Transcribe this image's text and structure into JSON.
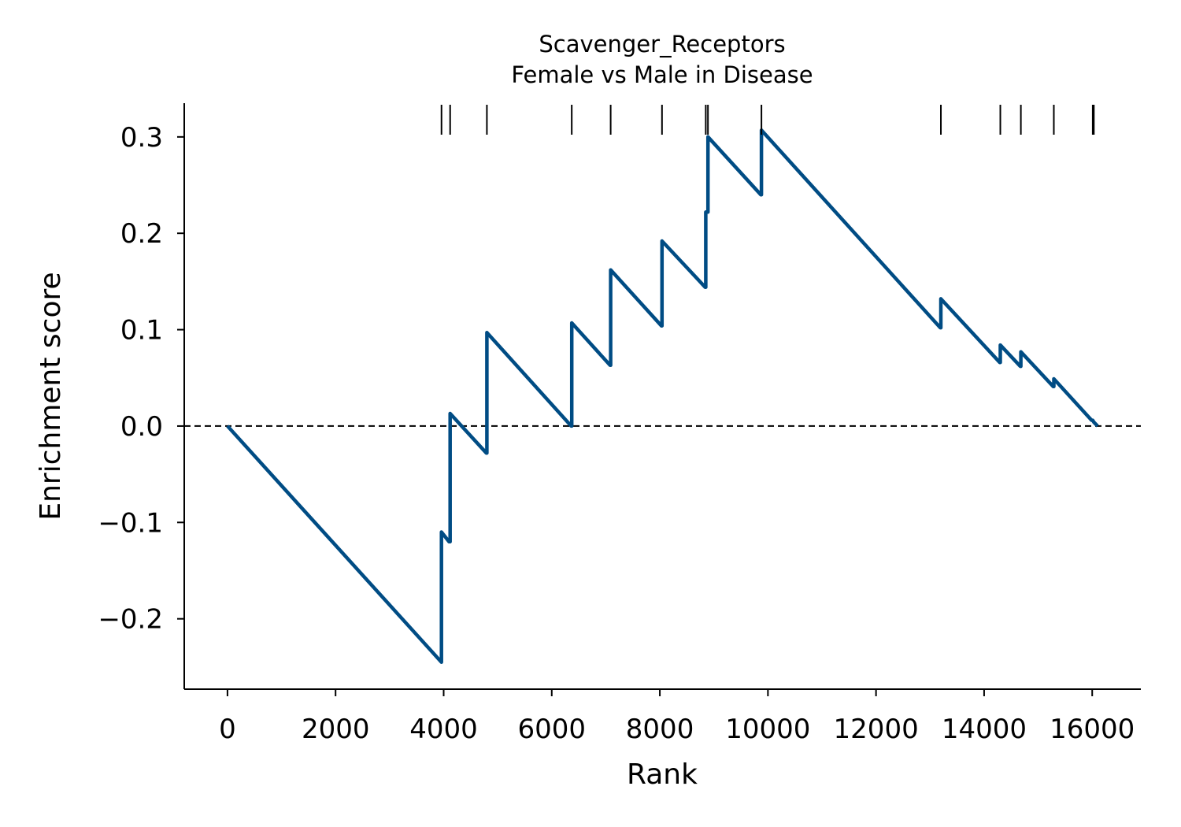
{
  "chart_data": {
    "type": "line",
    "title": "Scavenger_Receptors",
    "subtitle": "Female vs Male in Disease",
    "xlabel": "Rank",
    "ylabel": "Enrichment score",
    "xlim": [
      -800,
      16900
    ],
    "ylim": [
      -0.273,
      0.335
    ],
    "xticks": [
      0,
      2000,
      4000,
      6000,
      8000,
      10000,
      12000,
      14000,
      16000
    ],
    "xtick_labels": [
      "0",
      "2000",
      "4000",
      "6000",
      "8000",
      "10000",
      "12000",
      "14000",
      "16000"
    ],
    "yticks": [
      -0.2,
      -0.1,
      0.0,
      0.1,
      0.2,
      0.3
    ],
    "ytick_labels": [
      "−0.2",
      "−0.1",
      "0.0",
      "0.1",
      "0.2",
      "0.3"
    ],
    "baseline": 0.0,
    "line_color": "#004c84",
    "hit_ranks": [
      3960,
      4120,
      4800,
      6370,
      7090,
      8040,
      8850,
      8890,
      9880,
      13200,
      14300,
      14680,
      15290,
      16010,
      16030
    ],
    "series": [
      {
        "x": [
          0,
          3960,
          3960,
          4100,
          4120,
          4120,
          4790,
          4800,
          4800,
          6360,
          6370,
          6370,
          7080,
          7090,
          7090,
          8030,
          8040,
          8040,
          8840,
          8850,
          8850,
          8880,
          8890,
          8890,
          9870,
          9880,
          9880,
          13190,
          13200,
          13200,
          14290,
          14300,
          14300,
          14670,
          14680,
          14680,
          15280,
          15290,
          15290,
          15990,
          16010,
          16030,
          16100
        ],
        "y": [
          0.0,
          -0.245,
          -0.11,
          -0.12,
          -0.12,
          0.013,
          -0.028,
          -0.028,
          0.097,
          0.0,
          0.0,
          0.107,
          0.063,
          0.063,
          0.162,
          0.104,
          0.104,
          0.192,
          0.144,
          0.144,
          0.222,
          0.222,
          0.222,
          0.3,
          0.24,
          0.24,
          0.307,
          0.102,
          0.102,
          0.132,
          0.066,
          0.066,
          0.084,
          0.062,
          0.062,
          0.077,
          0.041,
          0.041,
          0.049,
          0.006,
          0.006,
          0.004,
          0.0
        ]
      }
    ]
  }
}
